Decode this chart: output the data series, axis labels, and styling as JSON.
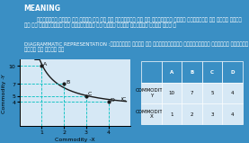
{
  "bg_top_color": "#3a8fc4",
  "bg_bottom_color": "#d6e8f5",
  "meaning_title": "MEANING",
  "meaning_text": "        तटस्थता वक्र वह वक्र है जो दो वस्तुओं के उन विभिन्न संभव संयोगों को पकड़ करता\nहै जो उपभोक्ता को संतुष्टि का समान स्तर प्रदान करते हैं ।",
  "diag_title": "DIAGRAMMATIC REPRESENTATION",
  "diag_text": " :तटस्थता वक्र को निम्नलिखित रेखाचित्र द्वारा स्पष्ट\nकिया जा सकता है",
  "points_x": [
    1,
    2,
    3,
    4
  ],
  "points_y": [
    10,
    7,
    5,
    4
  ],
  "point_labels": [
    "A",
    "B",
    "C",
    "D"
  ],
  "xlabel": "Commodity -X",
  "ylabel": "Commodity -Y",
  "ic_label": "IC",
  "xlim": [
    0,
    5
  ],
  "ylim": [
    0,
    11
  ],
  "xticks": [
    1,
    2,
    3,
    4
  ],
  "yticks": [
    4,
    5,
    7,
    10
  ],
  "curve_color": "#1a1a1a",
  "dashed_color": "#00bfbf",
  "point_color": "#1a1a1a",
  "table_headers": [
    "",
    "A",
    "B",
    "C",
    "D"
  ],
  "table_row1": [
    "COMMODITY-\nY",
    "10",
    "7",
    "5",
    "4"
  ],
  "table_row2": [
    "COMMODITY-\nX",
    "1",
    "2",
    "3",
    "4"
  ],
  "table_header_bg": "#3a8fc4",
  "table_row_bg": "#d6e8f5"
}
